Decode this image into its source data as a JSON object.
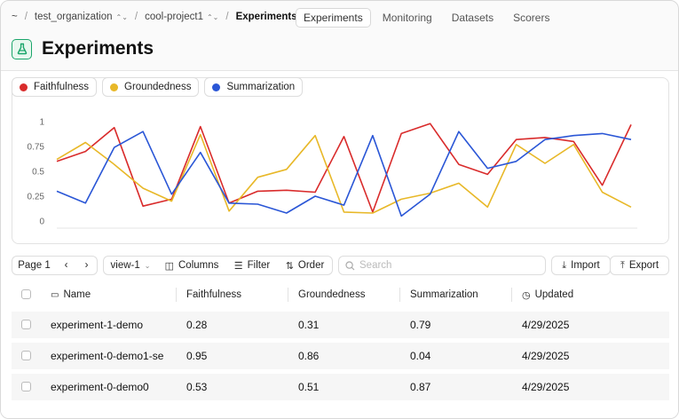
{
  "breadcrumb": {
    "home": "~",
    "organization": "test_organization",
    "project": "cool-project1",
    "current": "Experiments"
  },
  "nav_tabs": [
    {
      "label": "Experiments",
      "active": true
    },
    {
      "label": "Monitoring",
      "active": false
    },
    {
      "label": "Datasets",
      "active": false
    },
    {
      "label": "Scorers",
      "active": false
    }
  ],
  "page": {
    "title": "Experiments",
    "icon": "flask-icon",
    "icon_color": "#1aa56a"
  },
  "chart_data": {
    "type": "line",
    "ylim": [
      0,
      1
    ],
    "yticks": [
      "0",
      "0.25",
      "0.5",
      "0.75",
      "1"
    ],
    "grid": false,
    "legend_position": "top-left",
    "series": [
      {
        "name": "Faithfulness",
        "color": "#d92b2b",
        "values": [
          0.6,
          0.7,
          0.94,
          0.15,
          0.22,
          0.95,
          0.18,
          0.3,
          0.31,
          0.29,
          0.85,
          0.09,
          0.88,
          0.98,
          0.57,
          0.47,
          0.82,
          0.84,
          0.8,
          0.36,
          0.97
        ]
      },
      {
        "name": "Groundedness",
        "color": "#e8b828",
        "values": [
          0.62,
          0.79,
          0.57,
          0.33,
          0.2,
          0.87,
          0.1,
          0.44,
          0.52,
          0.86,
          0.09,
          0.08,
          0.22,
          0.28,
          0.38,
          0.14,
          0.77,
          0.58,
          0.77,
          0.29,
          0.14
        ]
      },
      {
        "name": "Summarization",
        "color": "#2a56d6",
        "values": [
          0.3,
          0.18,
          0.74,
          0.9,
          0.27,
          0.69,
          0.18,
          0.17,
          0.08,
          0.25,
          0.16,
          0.86,
          0.05,
          0.27,
          0.9,
          0.53,
          0.6,
          0.82,
          0.86,
          0.88,
          0.82
        ]
      }
    ]
  },
  "toolbar": {
    "page_label": "Page 1",
    "prev_icon": "chevron-left-icon",
    "next_icon": "chevron-right-icon",
    "view_label": "view-1",
    "columns_label": "Columns",
    "filter_label": "Filter",
    "order_label": "Order",
    "search_placeholder": "Search",
    "import_label": "Import",
    "export_label": "Export"
  },
  "table": {
    "headers": {
      "name": "Name",
      "faithfulness": "Faithfulness",
      "groundedness": "Groundedness",
      "summarization": "Summarization",
      "updated": "Updated"
    },
    "rows": [
      {
        "name": "experiment-1-demo",
        "faithfulness": "0.28",
        "groundedness": "0.31",
        "summarization": "0.79",
        "updated": "4/29/2025"
      },
      {
        "name": "experiment-0-demo1-se",
        "faithfulness": "0.95",
        "groundedness": "0.86",
        "summarization": "0.04",
        "updated": "4/29/2025"
      },
      {
        "name": "experiment-0-demo0",
        "faithfulness": "0.53",
        "groundedness": "0.51",
        "summarization": "0.87",
        "updated": "4/29/2025"
      }
    ]
  }
}
